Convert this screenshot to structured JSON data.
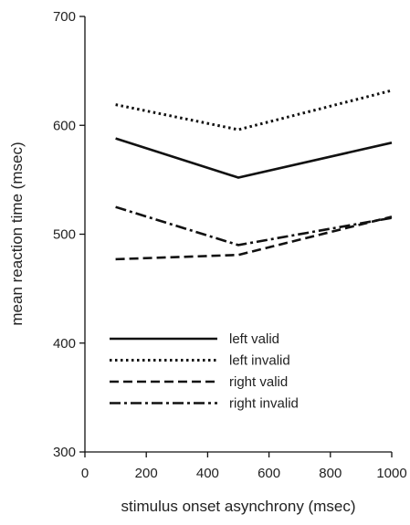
{
  "chart_data": {
    "type": "line",
    "title": "",
    "xlabel": "stimulus onset asynchrony (msec)",
    "ylabel": "mean reaction time (msec)",
    "xlim": [
      0,
      1000
    ],
    "ylim": [
      300,
      700
    ],
    "x_ticks": [
      0,
      200,
      400,
      600,
      800,
      1000
    ],
    "y_ticks": [
      300,
      400,
      500,
      600,
      700
    ],
    "x": [
      100,
      500,
      1000
    ],
    "grid": false,
    "legend_position": "lower-left",
    "series": [
      {
        "name": "left valid",
        "values": [
          588,
          552,
          584
        ],
        "style": "solid"
      },
      {
        "name": "left invalid",
        "values": [
          619,
          596,
          632
        ],
        "style": "dotted"
      },
      {
        "name": "right valid",
        "values": [
          477,
          481,
          516
        ],
        "style": "dashed"
      },
      {
        "name": "right invalid",
        "values": [
          525,
          490,
          515
        ],
        "style": "dashdot"
      }
    ],
    "line_color": "#111111"
  }
}
